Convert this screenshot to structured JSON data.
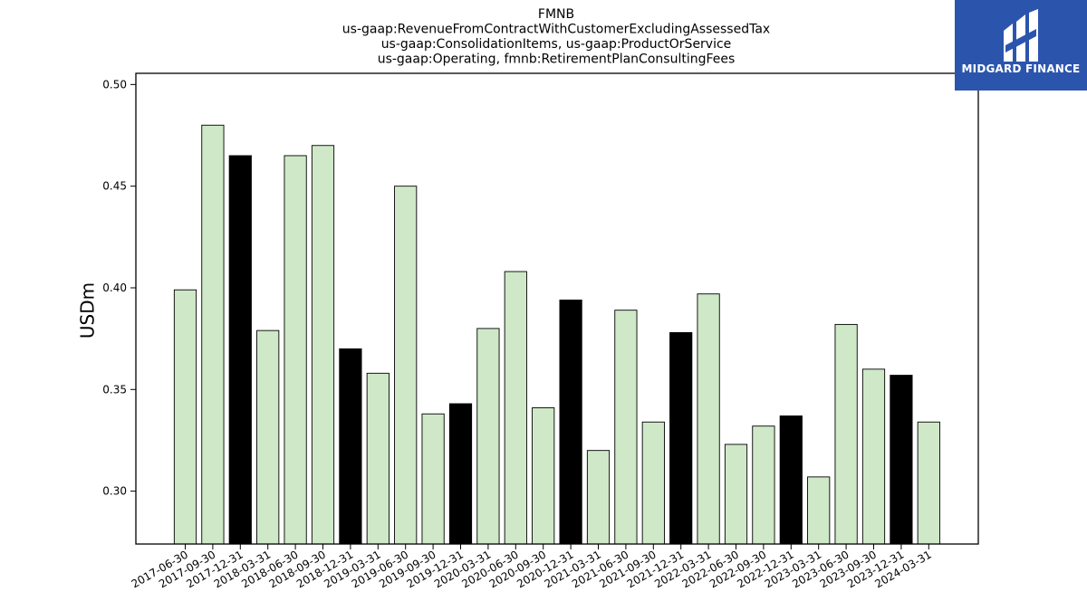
{
  "chart_data": {
    "type": "bar",
    "title_lines": [
      "FMNB",
      "us-gaap:RevenueFromContractWithCustomerExcludingAssessedTax",
      "us-gaap:ConsolidationItems, us-gaap:ProductOrService",
      "us-gaap:Operating, fmnb:RetirementPlanConsultingFees"
    ],
    "xlabel": "",
    "ylabel": "USDm",
    "ylim": [
      0.274,
      0.5055
    ],
    "yticks": [
      "0.30",
      "0.35",
      "0.40",
      "0.45",
      "0.50"
    ],
    "categories": [
      "2017-06-30",
      "2017-09-30",
      "2017-12-31",
      "2018-03-31",
      "2018-06-30",
      "2018-09-30",
      "2018-12-31",
      "2019-03-31",
      "2019-06-30",
      "2019-09-30",
      "2019-12-31",
      "2020-03-31",
      "2020-06-30",
      "2020-09-30",
      "2020-12-31",
      "2021-03-31",
      "2021-06-30",
      "2021-09-30",
      "2021-12-31",
      "2022-03-31",
      "2022-06-30",
      "2022-09-30",
      "2022-12-31",
      "2023-03-31",
      "2023-06-30",
      "2023-09-30",
      "2023-12-31",
      "2024-03-31"
    ],
    "values": [
      0.399,
      0.48,
      0.465,
      0.379,
      0.465,
      0.47,
      0.37,
      0.358,
      0.45,
      0.338,
      0.343,
      0.38,
      0.408,
      0.341,
      0.394,
      0.32,
      0.389,
      0.334,
      0.378,
      0.397,
      0.323,
      0.332,
      0.337,
      0.307,
      0.382,
      0.36,
      0.357,
      0.334
    ],
    "year_end_flags": [
      false,
      false,
      true,
      false,
      false,
      false,
      true,
      false,
      false,
      false,
      true,
      false,
      false,
      false,
      true,
      false,
      false,
      false,
      true,
      false,
      false,
      false,
      true,
      false,
      false,
      false,
      true,
      false
    ],
    "colors": {
      "quarter": "#cfe8c8",
      "year_end": "#000000",
      "edge": "#000000"
    },
    "grid": false,
    "legend": "none"
  },
  "logo": {
    "text": "MIDGARD FINANCE",
    "background": "#2b55ad"
  }
}
